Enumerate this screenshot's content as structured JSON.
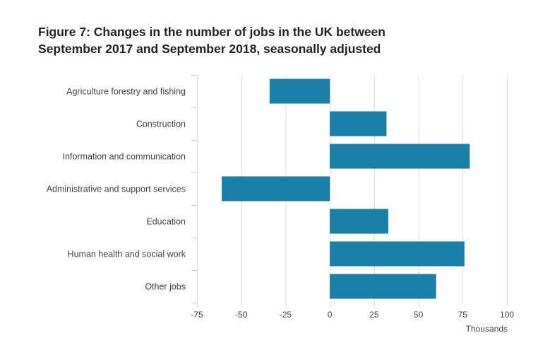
{
  "title_lines": [
    "Figure 7: Changes in the number of jobs in the UK between",
    "September 2017 and September 2018, seasonally adjusted"
  ],
  "chart_data": {
    "type": "bar",
    "orientation": "horizontal",
    "categories": [
      "Agriculture forestry and fishing",
      "Construction",
      "Information and communication",
      "Administrative and support services",
      "Education",
      "Human health and social work",
      "Other jobs"
    ],
    "values": [
      -34,
      32,
      79,
      -61,
      33,
      76,
      60
    ],
    "xlabel": "Thousands",
    "xlim": [
      -75,
      100
    ],
    "xticks": [
      -75,
      -50,
      -25,
      0,
      25,
      50,
      75,
      100
    ],
    "bar_color": "#1a7fa8",
    "grid": true
  }
}
